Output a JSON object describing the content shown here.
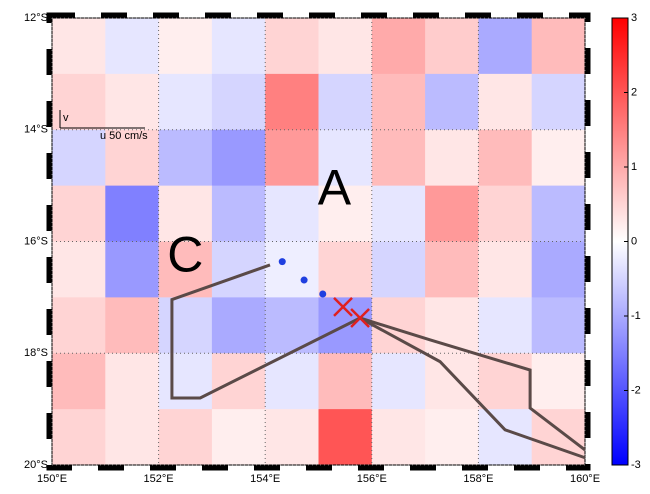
{
  "chart_data": {
    "type": "map",
    "xlim": [
      150,
      160
    ],
    "ylim": [
      -12,
      -20
    ],
    "xticks": [
      {
        "value": 150,
        "label": "150°E"
      },
      {
        "value": 152,
        "label": "152°E"
      },
      {
        "value": 154,
        "label": "154°E"
      },
      {
        "value": 156,
        "label": "156°E"
      },
      {
        "value": 158,
        "label": "158°E"
      },
      {
        "value": 160,
        "label": "160°E"
      }
    ],
    "yticks": [
      {
        "value": -12,
        "label": "12°S"
      },
      {
        "value": -14,
        "label": "14°S"
      },
      {
        "value": -16,
        "label": "16°S"
      },
      {
        "value": -18,
        "label": "18°S"
      },
      {
        "value": -20,
        "label": "20°S"
      }
    ],
    "grid": true,
    "clim": [
      -3,
      3
    ],
    "cticks": [
      3,
      2,
      1,
      0,
      -1,
      -2,
      -3
    ],
    "field": {
      "values": [
        [
          0.3,
          -0.3,
          0.2,
          -0.3,
          0.5,
          0.3,
          1.0,
          0.6,
          -1.0,
          0.8
        ],
        [
          0.5,
          0.3,
          -0.3,
          -0.5,
          1.5,
          -0.5,
          0.8,
          -0.8,
          0.3,
          -0.5
        ],
        [
          -0.5,
          0.5,
          -0.8,
          -1.2,
          1.2,
          -0.3,
          0.8,
          0.3,
          0.8,
          0.2
        ],
        [
          0.5,
          -1.5,
          0.3,
          -0.8,
          -0.3,
          0.2,
          -0.3,
          1.2,
          0.5,
          -0.8
        ],
        [
          0.3,
          -1.2,
          0.8,
          -0.5,
          -0.2,
          0.5,
          -0.5,
          0.8,
          0.3,
          -1.0
        ],
        [
          0.5,
          0.8,
          -0.5,
          -1.0,
          -0.8,
          -1.2,
          0.5,
          0.3,
          -0.3,
          -0.8
        ],
        [
          0.8,
          0.3,
          -0.3,
          0.5,
          -0.3,
          0.8,
          -0.3,
          0.3,
          0.5,
          0.2
        ],
        [
          0.5,
          0.3,
          0.5,
          0.2,
          0.3,
          2.0,
          0.3,
          0.2,
          -0.3,
          0.5
        ]
      ]
    },
    "tracks": [
      {
        "color": "#5a4a48",
        "lon": [
          154.09,
          152.25,
          152.25,
          152.78,
          155.78,
          157.09,
          158.97,
          158.97,
          160.0
        ],
        "lat": [
          -16.42,
          -17.04,
          -18.8,
          -18.8,
          -17.37,
          -17.76,
          -18.3,
          -18.98,
          -19.73
        ]
      },
      {
        "color": "#5a4a48",
        "lon": [
          155.78,
          157.28,
          158.5,
          160.0
        ],
        "lat": [
          -17.37,
          -18.15,
          -19.37,
          -19.87
        ]
      }
    ],
    "dots": {
      "color": "#1f3fe0",
      "lon": [
        154.32,
        154.73,
        155.08
      ],
      "lat": [
        -16.36,
        -16.69,
        -16.94
      ]
    },
    "crosses": {
      "color": "#e02020",
      "lon": [
        155.46,
        155.78
      ],
      "lat": [
        -17.17,
        -17.37
      ]
    },
    "annotations": [
      {
        "text": "A",
        "lon": 155.3,
        "lat": -15.1
      },
      {
        "text": "C",
        "lon": 152.5,
        "lat": -16.3
      }
    ],
    "reference": {
      "u_label": "u 50 cm/s",
      "v_label": "v"
    }
  }
}
